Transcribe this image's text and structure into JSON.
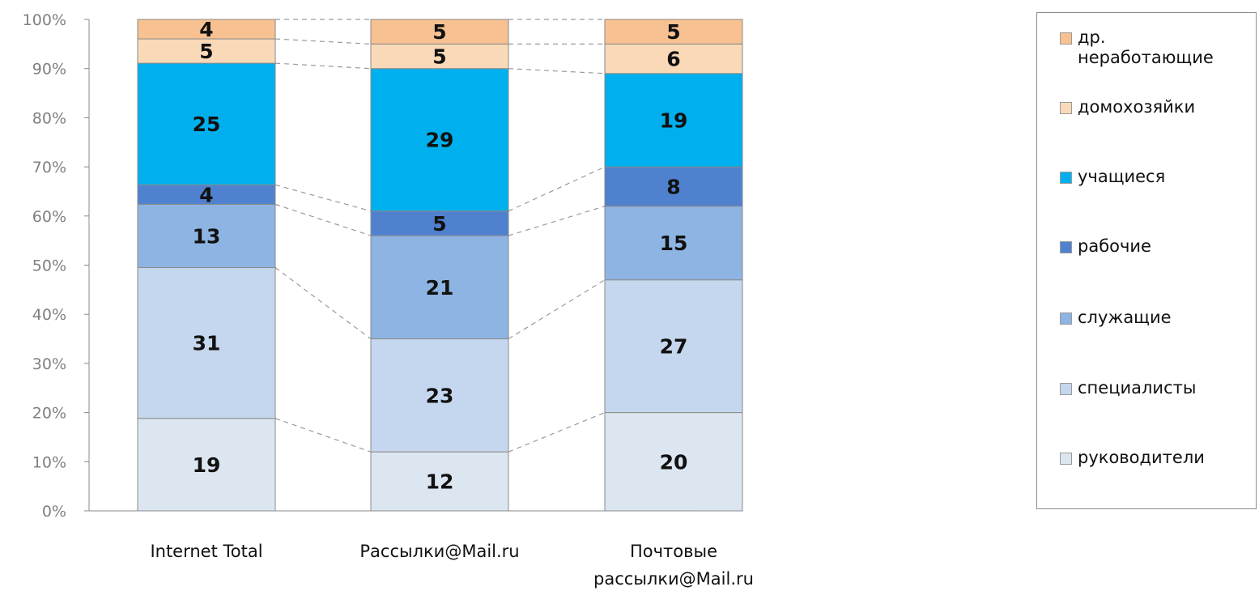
{
  "chart_data": {
    "type": "bar",
    "stacked": true,
    "percent_axis": true,
    "categories": [
      "Internet Total",
      "Рассылки@Mail.ru",
      "Почтовые\nрассылки@Mail.ru"
    ],
    "series": [
      {
        "name": "руководители",
        "values": [
          19,
          12,
          20
        ],
        "color": "#DCE6F1"
      },
      {
        "name": "специалисты",
        "values": [
          31,
          23,
          27
        ],
        "color": "#C5D7EE"
      },
      {
        "name": "служащие",
        "values": [
          13,
          21,
          15
        ],
        "color": "#8DB4E2"
      },
      {
        "name": "рабочие",
        "values": [
          4,
          5,
          8
        ],
        "color": "#4F81CF"
      },
      {
        "name": "учащиеся",
        "values": [
          25,
          29,
          19
        ],
        "color": "#00B0EE"
      },
      {
        "name": "домохозяйки",
        "values": [
          5,
          5,
          6
        ],
        "color": "#FAD9B8"
      },
      {
        "name": "др.\nнеработающие",
        "values": [
          4,
          5,
          5
        ],
        "color": "#F8C191"
      }
    ],
    "y_ticks": [
      "0%",
      "10%",
      "20%",
      "30%",
      "40%",
      "50%",
      "60%",
      "70%",
      "80%",
      "90%",
      "100%"
    ],
    "ylim": [
      0,
      100
    ],
    "series_lines": true,
    "legend_position": "right",
    "grid": false
  }
}
